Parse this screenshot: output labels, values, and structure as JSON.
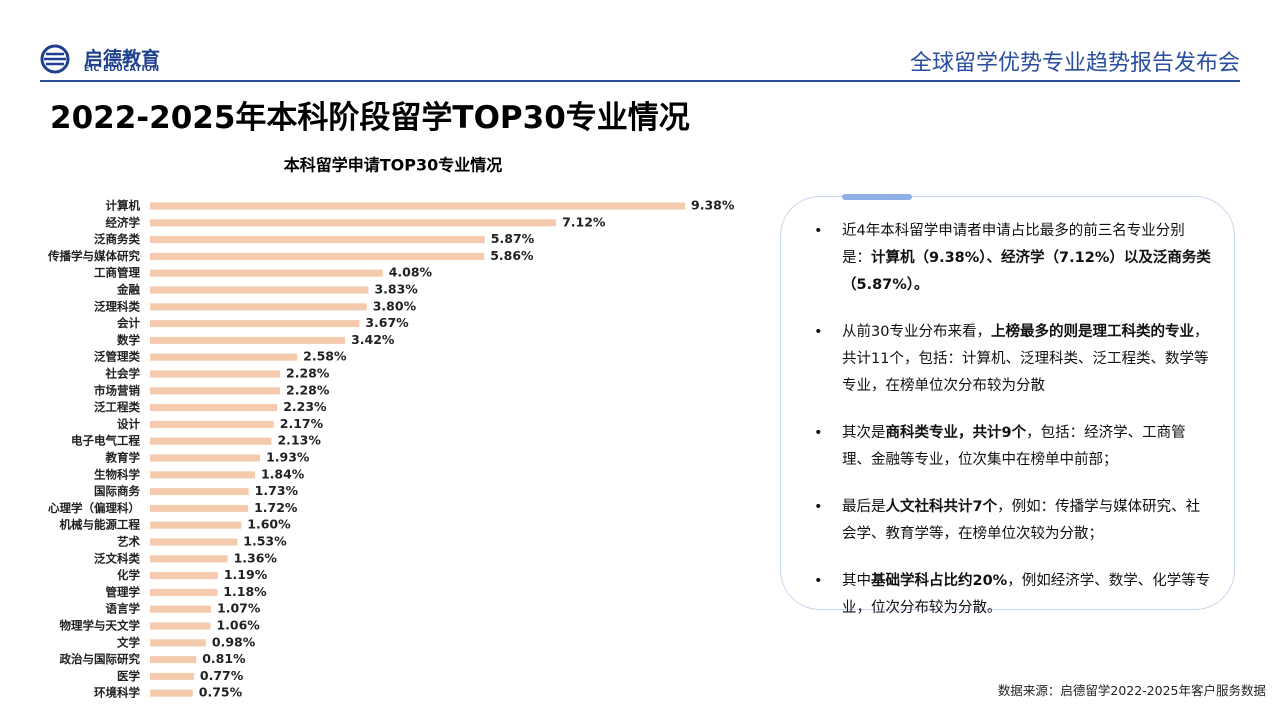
{
  "header": {
    "logo": "启德教育",
    "logo_sub": "EIC EDUCATION",
    "title": "全球留学优势专业趋势报告发布会"
  },
  "slide_title": "2022-2025年本科阶段留学TOP30专业情况",
  "chart_data": {
    "type": "bar",
    "orientation": "horizontal",
    "title": "本科留学申请TOP30专业情况",
    "color": "#f5c9ac",
    "categories": [
      "计算机",
      "经济学",
      "泛商务类",
      "传播学与媒体研究",
      "工商管理",
      "金融",
      "泛理科类",
      "会计",
      "数学",
      "泛管理类",
      "社会学",
      "市场营销",
      "泛工程类",
      "设计",
      "电子电气工程",
      "教育学",
      "生物科学",
      "国际商务",
      "心理学（偏理科）",
      "机械与能源工程",
      "艺术",
      "泛文科类",
      "化学",
      "管理学",
      "语言学",
      "物理学与天文学",
      "文学",
      "政治与国际研究",
      "医学",
      "环境科学"
    ],
    "values": [
      9.38,
      7.12,
      5.87,
      5.86,
      4.08,
      3.83,
      3.8,
      3.67,
      3.42,
      2.58,
      2.28,
      2.28,
      2.23,
      2.17,
      2.13,
      1.93,
      1.84,
      1.73,
      1.72,
      1.6,
      1.53,
      1.36,
      1.19,
      1.18,
      1.07,
      1.06,
      0.98,
      0.81,
      0.77,
      0.75
    ],
    "value_labels": [
      "9.38%",
      "7.12%",
      "5.87%",
      "5.86%",
      "4.08%",
      "3.83%",
      "3.80%",
      "3.67%",
      "3.42%",
      "2.58%",
      "2.28%",
      "2.28%",
      "2.23%",
      "2.17%",
      "2.13%",
      "1.93%",
      "1.84%",
      "1.73%",
      "1.72%",
      "1.60%",
      "1.53%",
      "1.36%",
      "1.19%",
      "1.18%",
      "1.07%",
      "1.06%",
      "0.98%",
      "0.81%",
      "0.77%",
      "0.75%"
    ]
  },
  "bullets": [
    [
      {
        "text": "近4年本科留学申请者申请占比最多的前三名专业分别是：",
        "bold": false
      },
      {
        "text": "计算机（9.38%）、经济学（7.12%）以及泛商务类（5.87%）。",
        "bold": true
      }
    ],
    [
      {
        "text": "从前30专业分布来看，",
        "bold": false
      },
      {
        "text": "上榜最多的则是理工科类的专业",
        "bold": true
      },
      {
        "text": "，共计11个，包括：计算机、泛理科类、泛工程类、数学等专业，在榜单位次分布较为分散",
        "bold": false
      }
    ],
    [
      {
        "text": "其次是",
        "bold": false
      },
      {
        "text": "商科类专业，共计9个",
        "bold": true
      },
      {
        "text": "，包括：经济学、工商管理、金融等专业，位次集中在榜单中前部；",
        "bold": false
      }
    ],
    [
      {
        "text": "最后是",
        "bold": false
      },
      {
        "text": "人文社科共计7个",
        "bold": true
      },
      {
        "text": "，例如：传播学与媒体研究、社会学、教育学等，在榜单位次较为分散；",
        "bold": false
      }
    ],
    [
      {
        "text": "其中",
        "bold": false
      },
      {
        "text": "基础学科占比约20%",
        "bold": true
      },
      {
        "text": "，例如经济学、数学、化学等专业，位次分布较为分散。",
        "bold": false
      }
    ]
  ],
  "source": "数据来源：启德留学2022-2025年客户服务数据"
}
